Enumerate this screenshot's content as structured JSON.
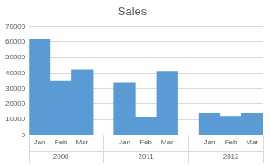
{
  "chart_data": {
    "type": "bar",
    "title": "Sales",
    "groups": [
      {
        "name": "2000",
        "categories": [
          "Jan",
          "Feb",
          "Mar"
        ],
        "values": [
          62000,
          35000,
          42000
        ]
      },
      {
        "name": "2011",
        "categories": [
          "Jan",
          "Feb",
          "Mar"
        ],
        "values": [
          34000,
          11000,
          41000
        ]
      },
      {
        "name": "2012",
        "categories": [
          "Jan",
          "Feb",
          "Mar"
        ],
        "values": [
          14000,
          12000,
          14000
        ]
      }
    ],
    "color": "#5b9bd5",
    "ylim": [
      0,
      70000
    ],
    "yticks": [
      0,
      10000,
      20000,
      30000,
      40000,
      50000,
      60000,
      70000
    ],
    "grid": true
  }
}
